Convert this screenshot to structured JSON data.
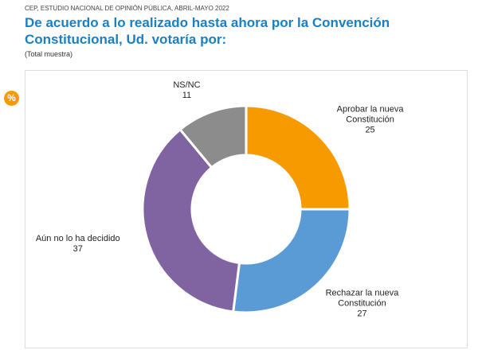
{
  "source": "CEP, ESTUDIO NACIONAL DE OPINIÓN PÚBLICA, ABRIL-MAYO 2022",
  "unit_badge": "%",
  "chart_data": {
    "type": "donut",
    "title": "De acuerdo a lo realizado hasta ahora por la Convención Constitucional, Ud. votaría por:",
    "subtitle": "(Total muestra)",
    "categories": [
      "Aprobar la nueva Constitución",
      "Rechazar la nueva Constitución",
      "Aún no lo ha decidido",
      "NS/NC"
    ],
    "values": [
      25,
      27,
      37,
      11
    ],
    "colors": [
      "#f79a00",
      "#5b9bd5",
      "#8064a2",
      "#8c8c8c"
    ]
  }
}
